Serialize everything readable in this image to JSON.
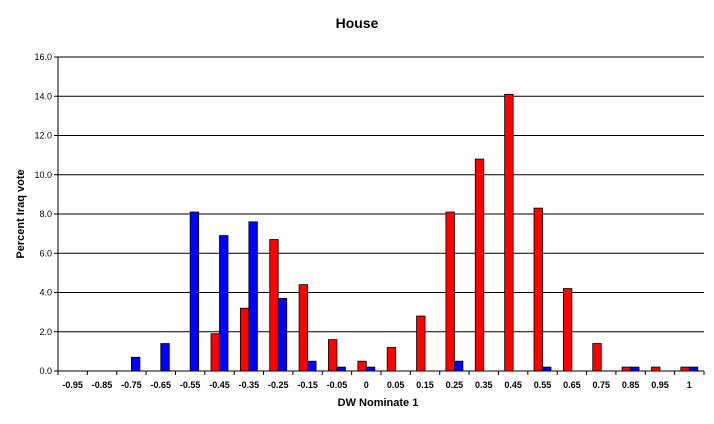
{
  "chart_data": {
    "type": "bar",
    "title": "House",
    "xlabel": "DW Nominate 1",
    "ylabel": "Percent Iraq vote",
    "ylim": [
      0,
      16
    ],
    "yticks": [
      "0.0",
      "2.0",
      "4.0",
      "6.0",
      "8.0",
      "10.0",
      "12.0",
      "14.0",
      "16.0"
    ],
    "grid": true,
    "categories": [
      "-0.95",
      "-0.85",
      "-0.75",
      "-0.65",
      "-0.55",
      "-0.45",
      "-0.35",
      "-0.25",
      "-0.15",
      "-0.05",
      "0",
      "0.05",
      "0.15",
      "0.25",
      "0.35",
      "0.45",
      "0.55",
      "0.65",
      "0.75",
      "0.85",
      "0.95",
      "1"
    ],
    "series": [
      {
        "color": "#ff0000",
        "values": [
          0,
          0,
          0,
          0,
          0,
          1.9,
          3.2,
          6.7,
          4.4,
          1.6,
          0.5,
          1.2,
          2.8,
          8.1,
          10.8,
          14.1,
          8.3,
          4.2,
          1.4,
          0.2,
          0.2,
          0.2
        ]
      },
      {
        "color": "#0000ff",
        "values": [
          0,
          0,
          0.7,
          1.4,
          8.1,
          6.9,
          7.6,
          3.7,
          0.5,
          0.2,
          0.2,
          0,
          0,
          0.5,
          0,
          0,
          0.2,
          0,
          0,
          0.2,
          0,
          0.2
        ]
      }
    ]
  }
}
